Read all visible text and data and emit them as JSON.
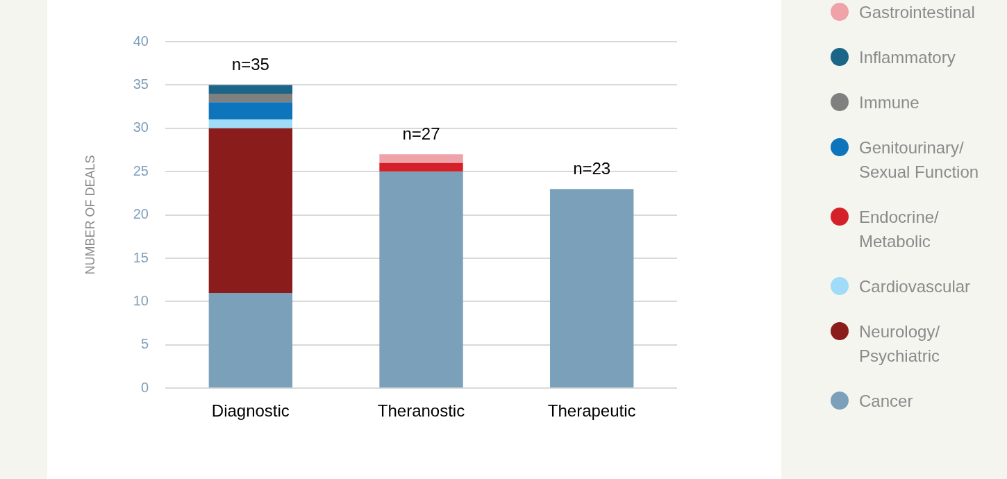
{
  "chart_data": {
    "type": "bar",
    "ylabel": "NUMBER OF DEALS",
    "categories": [
      "Diagnostic",
      "Theranostic",
      "Therapeutic"
    ],
    "stacked": true,
    "ylim": [
      0,
      40
    ],
    "yticks": [
      0,
      5,
      10,
      15,
      20,
      25,
      30,
      35,
      40
    ],
    "grid": "y",
    "legend": "right",
    "totals": [
      "n=35",
      "n=27",
      "n=23"
    ],
    "series": [
      {
        "name": "Cancer",
        "color": "#7ba1ba",
        "values": [
          11,
          25,
          23
        ]
      },
      {
        "name": "Neurology/ Psychiatric",
        "color": "#8b1c1c",
        "values": [
          19,
          0,
          0
        ]
      },
      {
        "name": "Cardiovascular",
        "color": "#9fdcf7",
        "values": [
          1,
          0,
          0
        ]
      },
      {
        "name": "Endocrine/ Metabolic",
        "color": "#d42129",
        "values": [
          0,
          1,
          0
        ]
      },
      {
        "name": "Genitourinary/ Sexual Function",
        "color": "#0e74bb",
        "values": [
          2,
          0,
          0
        ]
      },
      {
        "name": "Immune",
        "color": "#808080",
        "values": [
          1,
          0,
          0
        ]
      },
      {
        "name": "Inflammatory",
        "color": "#1b6688",
        "values": [
          1,
          0,
          0
        ]
      },
      {
        "name": "Gastrointestinal",
        "color": "#efa3a8",
        "values": [
          0,
          1,
          0
        ]
      }
    ]
  }
}
